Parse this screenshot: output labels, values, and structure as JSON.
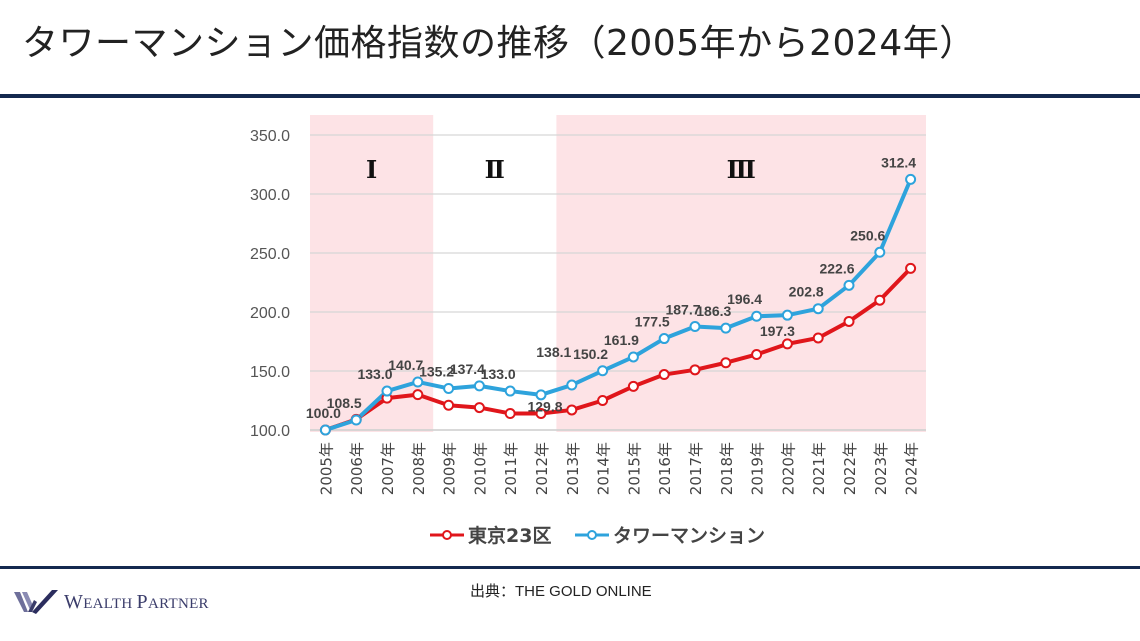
{
  "page": {
    "title": "タワーマンション価格指数の推移（2005年から2024年）",
    "source": "出典：THE GOLD ONLINE",
    "logo": {
      "brand_first": "W",
      "brand_rest1": "EALTH ",
      "brand_p": "P",
      "brand_rest2": "ARTNER",
      "icon": "wealth-partner-w-logo"
    },
    "colors": {
      "rule": "#14294f",
      "red_series": "#e0161b",
      "blue_series": "#2ea3dc",
      "shade": "#fde3e6"
    }
  },
  "chart_data": {
    "type": "line",
    "title": "",
    "xlabel": "",
    "ylabel": "",
    "ylim": [
      100,
      350
    ],
    "yticks": [
      "100.0",
      "150.0",
      "200.0",
      "250.0",
      "300.0",
      "350.0"
    ],
    "ytick_values": [
      100,
      150,
      200,
      250,
      300,
      350
    ],
    "grid": true,
    "legend_position": "bottom",
    "categories": [
      "2005年",
      "2006年",
      "2007年",
      "2008年",
      "2009年",
      "2010年",
      "2011年",
      "2012年",
      "2013年",
      "2014年",
      "2015年",
      "2016年",
      "2017年",
      "2018年",
      "2019年",
      "2020年",
      "2021年",
      "2022年",
      "2023年",
      "2024年"
    ],
    "periods": [
      {
        "label": "Ⅰ",
        "start": "2005年",
        "end": "2008年",
        "shaded": true
      },
      {
        "label": "Ⅱ",
        "start": "2009年",
        "end": "2012年",
        "shaded": false
      },
      {
        "label": "Ⅲ",
        "start": "2013年",
        "end": "2024年",
        "shaded": true
      }
    ],
    "series": [
      {
        "name": "東京23区",
        "color": "#e0161b",
        "values": [
          100.0,
          109.0,
          127.0,
          130.0,
          121.0,
          119.0,
          114.0,
          114.0,
          117.0,
          125.0,
          137.0,
          147.0,
          151.0,
          157.0,
          164.0,
          173.0,
          178.0,
          192.0,
          210.0,
          237.0
        ]
      },
      {
        "name": "タワーマンション",
        "color": "#2ea3dc",
        "values": [
          100.0,
          108.5,
          133.0,
          140.7,
          135.2,
          137.4,
          133.0,
          129.8,
          138.1,
          150.2,
          161.9,
          177.5,
          187.7,
          186.3,
          196.4,
          197.3,
          202.8,
          222.6,
          250.6,
          312.4
        ],
        "data_labels": [
          "100.0",
          "108.5",
          "133.0",
          "140.7",
          "135.2",
          "137.4",
          "133.0",
          "129.8",
          "138.1",
          "150.2",
          "161.9",
          "177.5",
          "187.7",
          "186.3",
          "196.4",
          "197.3",
          "202.8",
          "222.6",
          "250.6",
          "312.4"
        ]
      }
    ]
  }
}
